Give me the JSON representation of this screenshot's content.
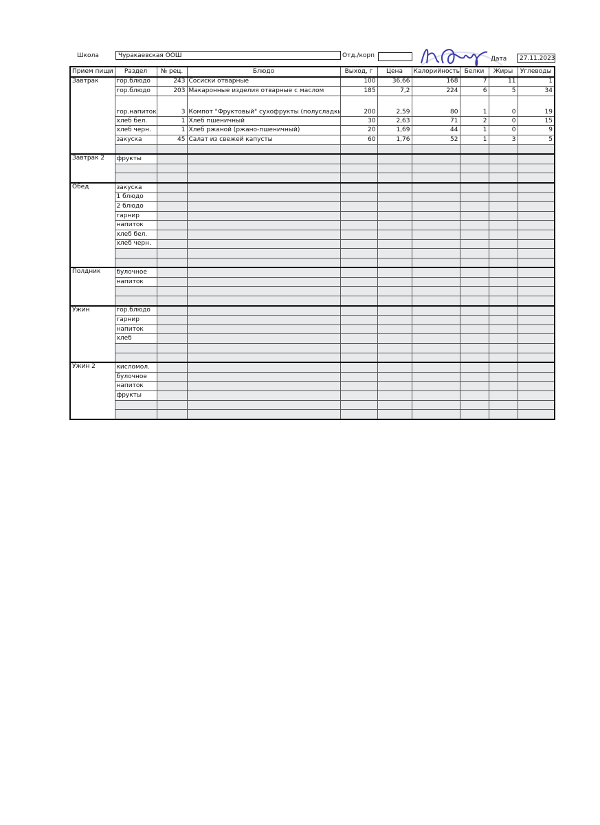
{
  "header": {
    "school_label": "Школа",
    "school_value": "Чуракаевская ООШ",
    "dept_label": "Отд./корп",
    "dept_value": "",
    "date_label": "Дата",
    "date_value": "27.11.2023"
  },
  "columns": [
    "Прием пищи",
    "Раздел",
    "№ рец.",
    "Блюдо",
    "Выход, г",
    "Цена",
    "Калорийность",
    "Белки",
    "Жиры",
    "Углеводы"
  ],
  "meals": [
    {
      "name": "Завтрак",
      "rows": [
        [
          "гор.блюдо",
          "243",
          "Сосиски отварные",
          "100",
          "36,66",
          "168",
          "7",
          "11",
          "1"
        ],
        [
          "гор.блюдо",
          "203",
          "Макаронные изделия отварные с маслом",
          "185",
          "7,2",
          "224",
          "6",
          "5",
          "34"
        ],
        [
          "гор.напиток",
          "3",
          "Компот \"Фруктовый\" сухофрукты (полусладкий)",
          "200",
          "2,59",
          "80",
          "1",
          "0",
          "19"
        ],
        [
          "хлеб бел.",
          "1",
          "Хлеб пшеничный",
          "30",
          "2,63",
          "71",
          "2",
          "0",
          "15"
        ],
        [
          "хлеб черн.",
          "1",
          "Хлеб ржаной (ржано-пшеничный)",
          "20",
          "1,69",
          "44",
          "1",
          "0",
          "9"
        ],
        [
          "закуска",
          "45",
          "Салат из свежей капусты",
          "60",
          "1,76",
          "52",
          "1",
          "3",
          "5"
        ],
        [
          "",
          "",
          "",
          "",
          "",
          "",
          "",
          "",
          ""
        ]
      ]
    },
    {
      "name": "Завтрак 2",
      "rows": [
        [
          "фрукты",
          "",
          "",
          "",
          "",
          "",
          "",
          "",
          ""
        ],
        [
          "",
          "",
          "",
          "",
          "",
          "",
          "",
          "",
          ""
        ],
        [
          "",
          "",
          "",
          "",
          "",
          "",
          "",
          "",
          ""
        ]
      ]
    },
    {
      "name": "Обед",
      "rows": [
        [
          "закуска",
          "",
          "",
          "",
          "",
          "",
          "",
          "",
          ""
        ],
        [
          "1 блюдо",
          "",
          "",
          "",
          "",
          "",
          "",
          "",
          ""
        ],
        [
          "2 блюдо",
          "",
          "",
          "",
          "",
          "",
          "",
          "",
          ""
        ],
        [
          "гарнир",
          "",
          "",
          "",
          "",
          "",
          "",
          "",
          ""
        ],
        [
          "напиток",
          "",
          "",
          "",
          "",
          "",
          "",
          "",
          ""
        ],
        [
          "хлеб бел.",
          "",
          "",
          "",
          "",
          "",
          "",
          "",
          ""
        ],
        [
          "хлеб черн.",
          "",
          "",
          "",
          "",
          "",
          "",
          "",
          ""
        ],
        [
          "",
          "",
          "",
          "",
          "",
          "",
          "",
          "",
          ""
        ],
        [
          "",
          "",
          "",
          "",
          "",
          "",
          "",
          "",
          ""
        ]
      ]
    },
    {
      "name": "Полдник",
      "rows": [
        [
          "булочное",
          "",
          "",
          "",
          "",
          "",
          "",
          "",
          ""
        ],
        [
          "напиток",
          "",
          "",
          "",
          "",
          "",
          "",
          "",
          ""
        ],
        [
          "",
          "",
          "",
          "",
          "",
          "",
          "",
          "",
          ""
        ],
        [
          "",
          "",
          "",
          "",
          "",
          "",
          "",
          "",
          ""
        ]
      ]
    },
    {
      "name": "Ужин",
      "rows": [
        [
          "гор.блюдо",
          "",
          "",
          "",
          "",
          "",
          "",
          "",
          ""
        ],
        [
          "гарнир",
          "",
          "",
          "",
          "",
          "",
          "",
          "",
          ""
        ],
        [
          "напиток",
          "",
          "",
          "",
          "",
          "",
          "",
          "",
          ""
        ],
        [
          "хлеб",
          "",
          "",
          "",
          "",
          "",
          "",
          "",
          ""
        ],
        [
          "",
          "",
          "",
          "",
          "",
          "",
          "",
          "",
          ""
        ],
        [
          "",
          "",
          "",
          "",
          "",
          "",
          "",
          "",
          ""
        ]
      ]
    },
    {
      "name": "Ужин 2",
      "rows": [
        [
          "кисломол.",
          "",
          "",
          "",
          "",
          "",
          "",
          "",
          ""
        ],
        [
          "булочное",
          "",
          "",
          "",
          "",
          "",
          "",
          "",
          ""
        ],
        [
          "напиток",
          "",
          "",
          "",
          "",
          "",
          "",
          "",
          ""
        ],
        [
          "фрукты",
          "",
          "",
          "",
          "",
          "",
          "",
          "",
          ""
        ],
        [
          "",
          "",
          "",
          "",
          "",
          "",
          "",
          "",
          ""
        ],
        [
          "",
          "",
          "",
          "",
          "",
          "",
          "",
          "",
          ""
        ]
      ]
    }
  ],
  "ink_color": "#3a3ab0"
}
